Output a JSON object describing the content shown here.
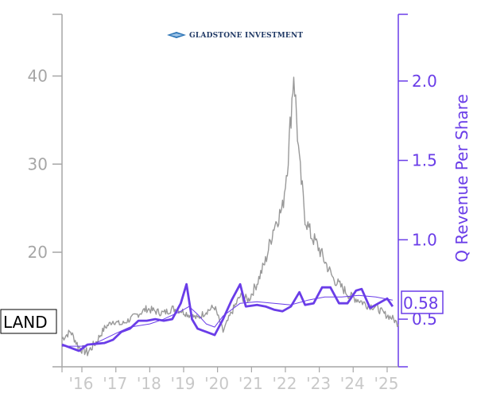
{
  "logo": {
    "text": "GLADSTONE INVESTMENT"
  },
  "ticker": "LAND",
  "last_value_label": "0.58",
  "colors": {
    "price": "#999999",
    "revenue": "#6a3de8",
    "left_axis": "#a6a6a6",
    "right_axis": "#6a3de8",
    "x_tick": "#c8c8c8"
  },
  "chart_data": {
    "type": "line",
    "x_axis": {
      "type": "date",
      "range": [
        "2015-06-01",
        "2025-05-01"
      ],
      "ticks": [
        {
          "date": "2016-01-01",
          "label": "'16"
        },
        {
          "date": "2017-01-01",
          "label": "'17"
        },
        {
          "date": "2018-01-01",
          "label": "'18"
        },
        {
          "date": "2019-01-01",
          "label": "'19"
        },
        {
          "date": "2020-01-01",
          "label": "'20"
        },
        {
          "date": "2021-01-01",
          "label": "'21"
        },
        {
          "date": "2022-01-01",
          "label": "'22"
        },
        {
          "date": "2023-01-01",
          "label": "'23"
        },
        {
          "date": "2024-01-01",
          "label": "'24"
        },
        {
          "date": "2025-01-01",
          "label": "'25"
        }
      ]
    },
    "y_left": {
      "range": [
        7,
        47
      ],
      "ticks": [
        {
          "value": 20,
          "label": "20"
        },
        {
          "value": 30,
          "label": "30"
        },
        {
          "value": 40,
          "label": "40"
        }
      ]
    },
    "y_right": {
      "label": "Q Revenue Per Share",
      "range": [
        0.2,
        2.42
      ],
      "ticks": [
        {
          "value": 1.0,
          "label": "1.0"
        },
        {
          "value": 1.5,
          "label": "1.5"
        },
        {
          "value": 2.0,
          "label": "2.0"
        }
      ],
      "partial_tick": {
        "value": 0.5,
        "label": "0.5"
      }
    },
    "series": [
      {
        "name": "LAND",
        "axis": "left",
        "style": "noisy",
        "points": [
          [
            "2015-06-01",
            10.2
          ],
          [
            "2015-09-01",
            11.0
          ],
          [
            "2015-12-01",
            9.2
          ],
          [
            "2016-03-01",
            8.6
          ],
          [
            "2016-06-01",
            9.8
          ],
          [
            "2016-09-01",
            11.4
          ],
          [
            "2016-12-01",
            12.2
          ],
          [
            "2017-03-01",
            11.8
          ],
          [
            "2017-06-01",
            12.4
          ],
          [
            "2017-09-01",
            13.0
          ],
          [
            "2017-12-01",
            13.6
          ],
          [
            "2018-03-01",
            13.3
          ],
          [
            "2018-06-01",
            13.1
          ],
          [
            "2018-09-01",
            13.6
          ],
          [
            "2018-12-01",
            13.4
          ],
          [
            "2019-03-01",
            12.9
          ],
          [
            "2019-06-01",
            12.5
          ],
          [
            "2019-09-01",
            13.3
          ],
          [
            "2019-12-01",
            13.8
          ],
          [
            "2020-03-01",
            11.0
          ],
          [
            "2020-06-01",
            13.2
          ],
          [
            "2020-09-01",
            15.0
          ],
          [
            "2020-12-01",
            14.6
          ],
          [
            "2021-03-01",
            16.5
          ],
          [
            "2021-06-01",
            19.0
          ],
          [
            "2021-09-01",
            23.0
          ],
          [
            "2021-12-01",
            25.0
          ],
          [
            "2022-02-01",
            31.0
          ],
          [
            "2022-04-01",
            40.5
          ],
          [
            "2022-06-01",
            30.0
          ],
          [
            "2022-08-01",
            24.0
          ],
          [
            "2022-10-01",
            22.0
          ],
          [
            "2022-12-01",
            21.0
          ],
          [
            "2023-03-01",
            19.0
          ],
          [
            "2023-06-01",
            17.0
          ],
          [
            "2023-09-01",
            16.0
          ],
          [
            "2023-12-01",
            15.0
          ],
          [
            "2024-03-01",
            14.6
          ],
          [
            "2024-06-01",
            14.0
          ],
          [
            "2024-09-01",
            13.8
          ],
          [
            "2024-12-01",
            13.0
          ],
          [
            "2025-03-01",
            12.5
          ],
          [
            "2025-05-01",
            11.8
          ]
        ]
      },
      {
        "name": "Q Revenue Per Share",
        "axis": "right",
        "style": "thick",
        "points": [
          [
            "2015-06-01",
            0.34
          ],
          [
            "2015-09-01",
            0.32
          ],
          [
            "2015-12-01",
            0.3
          ],
          [
            "2016-03-01",
            0.34
          ],
          [
            "2016-09-01",
            0.35
          ],
          [
            "2016-12-01",
            0.37
          ],
          [
            "2017-03-01",
            0.42
          ],
          [
            "2017-06-01",
            0.44
          ],
          [
            "2017-09-01",
            0.49
          ],
          [
            "2017-12-01",
            0.49
          ],
          [
            "2018-03-01",
            0.5
          ],
          [
            "2018-06-01",
            0.49
          ],
          [
            "2018-09-01",
            0.5
          ],
          [
            "2018-12-01",
            0.6
          ],
          [
            "2019-02-01",
            0.72
          ],
          [
            "2019-04-01",
            0.5
          ],
          [
            "2019-06-01",
            0.44
          ],
          [
            "2019-09-01",
            0.42
          ],
          [
            "2019-12-01",
            0.4
          ],
          [
            "2020-03-01",
            0.5
          ],
          [
            "2020-06-01",
            0.62
          ],
          [
            "2020-09-01",
            0.72
          ],
          [
            "2020-11-01",
            0.58
          ],
          [
            "2021-03-01",
            0.59
          ],
          [
            "2021-06-01",
            0.58
          ],
          [
            "2021-09-01",
            0.56
          ],
          [
            "2021-12-01",
            0.55
          ],
          [
            "2022-03-01",
            0.58
          ],
          [
            "2022-06-01",
            0.67
          ],
          [
            "2022-08-01",
            0.59
          ],
          [
            "2022-11-01",
            0.6
          ],
          [
            "2023-02-01",
            0.7
          ],
          [
            "2023-05-01",
            0.7
          ],
          [
            "2023-08-01",
            0.6
          ],
          [
            "2023-11-01",
            0.6
          ],
          [
            "2024-02-01",
            0.68
          ],
          [
            "2024-04-01",
            0.69
          ],
          [
            "2024-07-01",
            0.57
          ],
          [
            "2024-10-01",
            0.6
          ],
          [
            "2025-01-01",
            0.63
          ],
          [
            "2025-03-01",
            0.58
          ]
        ]
      },
      {
        "name": "Q Revenue Per Share (trend)",
        "axis": "right",
        "style": "thin",
        "points": [
          [
            "2015-06-01",
            0.33
          ],
          [
            "2016-01-01",
            0.33
          ],
          [
            "2016-06-01",
            0.35
          ],
          [
            "2017-01-01",
            0.41
          ],
          [
            "2017-06-01",
            0.45
          ],
          [
            "2018-01-01",
            0.47
          ],
          [
            "2018-06-01",
            0.5
          ],
          [
            "2018-12-01",
            0.55
          ],
          [
            "2019-03-01",
            0.58
          ],
          [
            "2019-06-01",
            0.53
          ],
          [
            "2019-09-01",
            0.47
          ],
          [
            "2019-12-01",
            0.45
          ],
          [
            "2020-03-01",
            0.52
          ],
          [
            "2020-09-01",
            0.6
          ],
          [
            "2021-03-01",
            0.61
          ],
          [
            "2021-09-01",
            0.6
          ],
          [
            "2022-03-01",
            0.59
          ],
          [
            "2022-09-01",
            0.62
          ],
          [
            "2023-03-01",
            0.64
          ],
          [
            "2023-09-01",
            0.64
          ],
          [
            "2024-03-01",
            0.65
          ],
          [
            "2024-09-01",
            0.64
          ],
          [
            "2025-03-01",
            0.62
          ]
        ]
      }
    ]
  }
}
